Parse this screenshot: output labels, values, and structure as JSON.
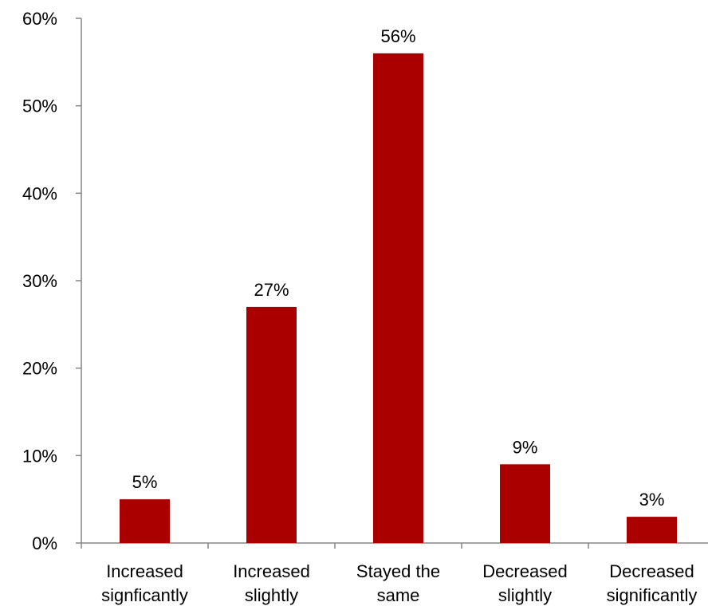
{
  "chart_data": {
    "type": "bar",
    "categories": [
      [
        "Increased",
        "signficantly"
      ],
      [
        "Increased",
        "slightly"
      ],
      [
        "Stayed the",
        "same"
      ],
      [
        "Decreased",
        "slightly"
      ],
      [
        "Decreased",
        "significantly"
      ]
    ],
    "values": [
      5,
      27,
      56,
      9,
      3
    ],
    "data_labels": [
      "5%",
      "27%",
      "56%",
      "9%",
      "3%"
    ],
    "y_ticks": [
      "0%",
      "10%",
      "20%",
      "30%",
      "40%",
      "50%",
      "60%"
    ],
    "ylim": [
      0,
      60
    ],
    "grid": false,
    "legend": "none",
    "title": "",
    "xlabel": "",
    "ylabel": "",
    "bar_color": "#AA0000",
    "axis_color": "#868686"
  }
}
